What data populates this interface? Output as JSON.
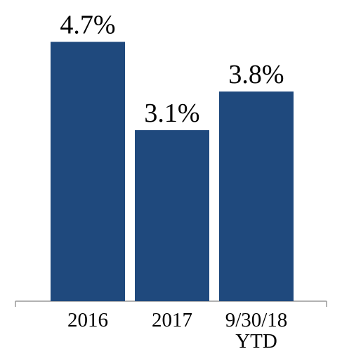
{
  "chart_data": {
    "type": "bar",
    "categories": [
      "2016",
      "2017",
      "9/30/18 YTD"
    ],
    "values": [
      4.7,
      3.1,
      3.8
    ],
    "value_labels": [
      "4.7%",
      "3.1%",
      "3.8%"
    ],
    "color": "#1f497d"
  }
}
